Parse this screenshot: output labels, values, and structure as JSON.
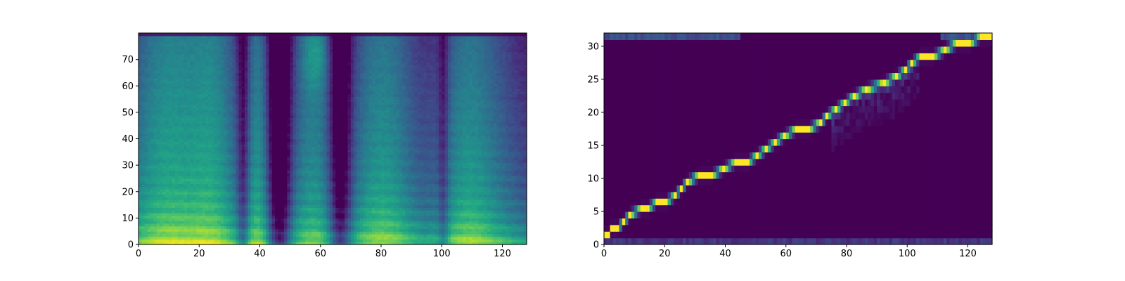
{
  "chart_data": [
    {
      "type": "heatmap",
      "title": "",
      "xlabel": "",
      "ylabel": "",
      "xlim": [
        0,
        128
      ],
      "ylim": [
        0,
        80
      ],
      "colormap": "viridis",
      "value_range": [
        0,
        1
      ],
      "grid": false,
      "x_ticks": [
        "0",
        "20",
        "40",
        "60",
        "80",
        "100",
        "120"
      ],
      "y_ticks": [
        "0",
        "10",
        "20",
        "30",
        "40",
        "50",
        "60",
        "70"
      ],
      "grid_shape": {
        "frames": 128,
        "channels": 80
      },
      "description_of_data": "mel-spectrogram style energy per frame (x) and channel (y)"
    },
    {
      "type": "heatmap",
      "title": "",
      "xlabel": "",
      "ylabel": "",
      "xlim": [
        0,
        128
      ],
      "ylim": [
        0,
        32
      ],
      "colormap": "viridis",
      "value_range": [
        0,
        1
      ],
      "grid": false,
      "x_ticks": [
        "0",
        "20",
        "40",
        "60",
        "80",
        "100",
        "120"
      ],
      "y_ticks": [
        "0",
        "5",
        "10",
        "15",
        "20",
        "25",
        "30"
      ],
      "grid_shape": {
        "frames": 128,
        "tokens": 32
      },
      "alignment_path": [
        [
          0,
          1
        ],
        [
          1,
          1
        ],
        [
          2,
          2
        ],
        [
          4,
          2
        ],
        [
          6,
          3
        ],
        [
          8,
          4
        ],
        [
          12,
          5
        ],
        [
          14,
          5
        ],
        [
          17,
          6
        ],
        [
          20,
          6
        ],
        [
          23,
          7
        ],
        [
          25,
          8
        ],
        [
          27,
          9
        ],
        [
          31,
          10
        ],
        [
          35,
          10
        ],
        [
          39,
          11
        ],
        [
          43,
          12
        ],
        [
          47,
          12
        ],
        [
          50,
          13
        ],
        [
          53,
          14
        ],
        [
          56,
          15
        ],
        [
          59,
          16
        ],
        [
          63,
          17
        ],
        [
          67,
          17
        ],
        [
          71,
          18
        ],
        [
          73,
          19
        ],
        [
          76,
          20
        ],
        [
          79,
          21
        ],
        [
          82,
          22
        ],
        [
          86,
          23
        ],
        [
          92,
          24
        ],
        [
          96,
          25
        ],
        [
          99,
          26
        ],
        [
          101,
          27
        ],
        [
          104,
          28
        ],
        [
          108,
          28
        ],
        [
          112,
          29
        ],
        [
          116,
          30
        ],
        [
          120,
          30
        ],
        [
          124,
          31
        ],
        [
          128,
          31
        ]
      ]
    }
  ]
}
